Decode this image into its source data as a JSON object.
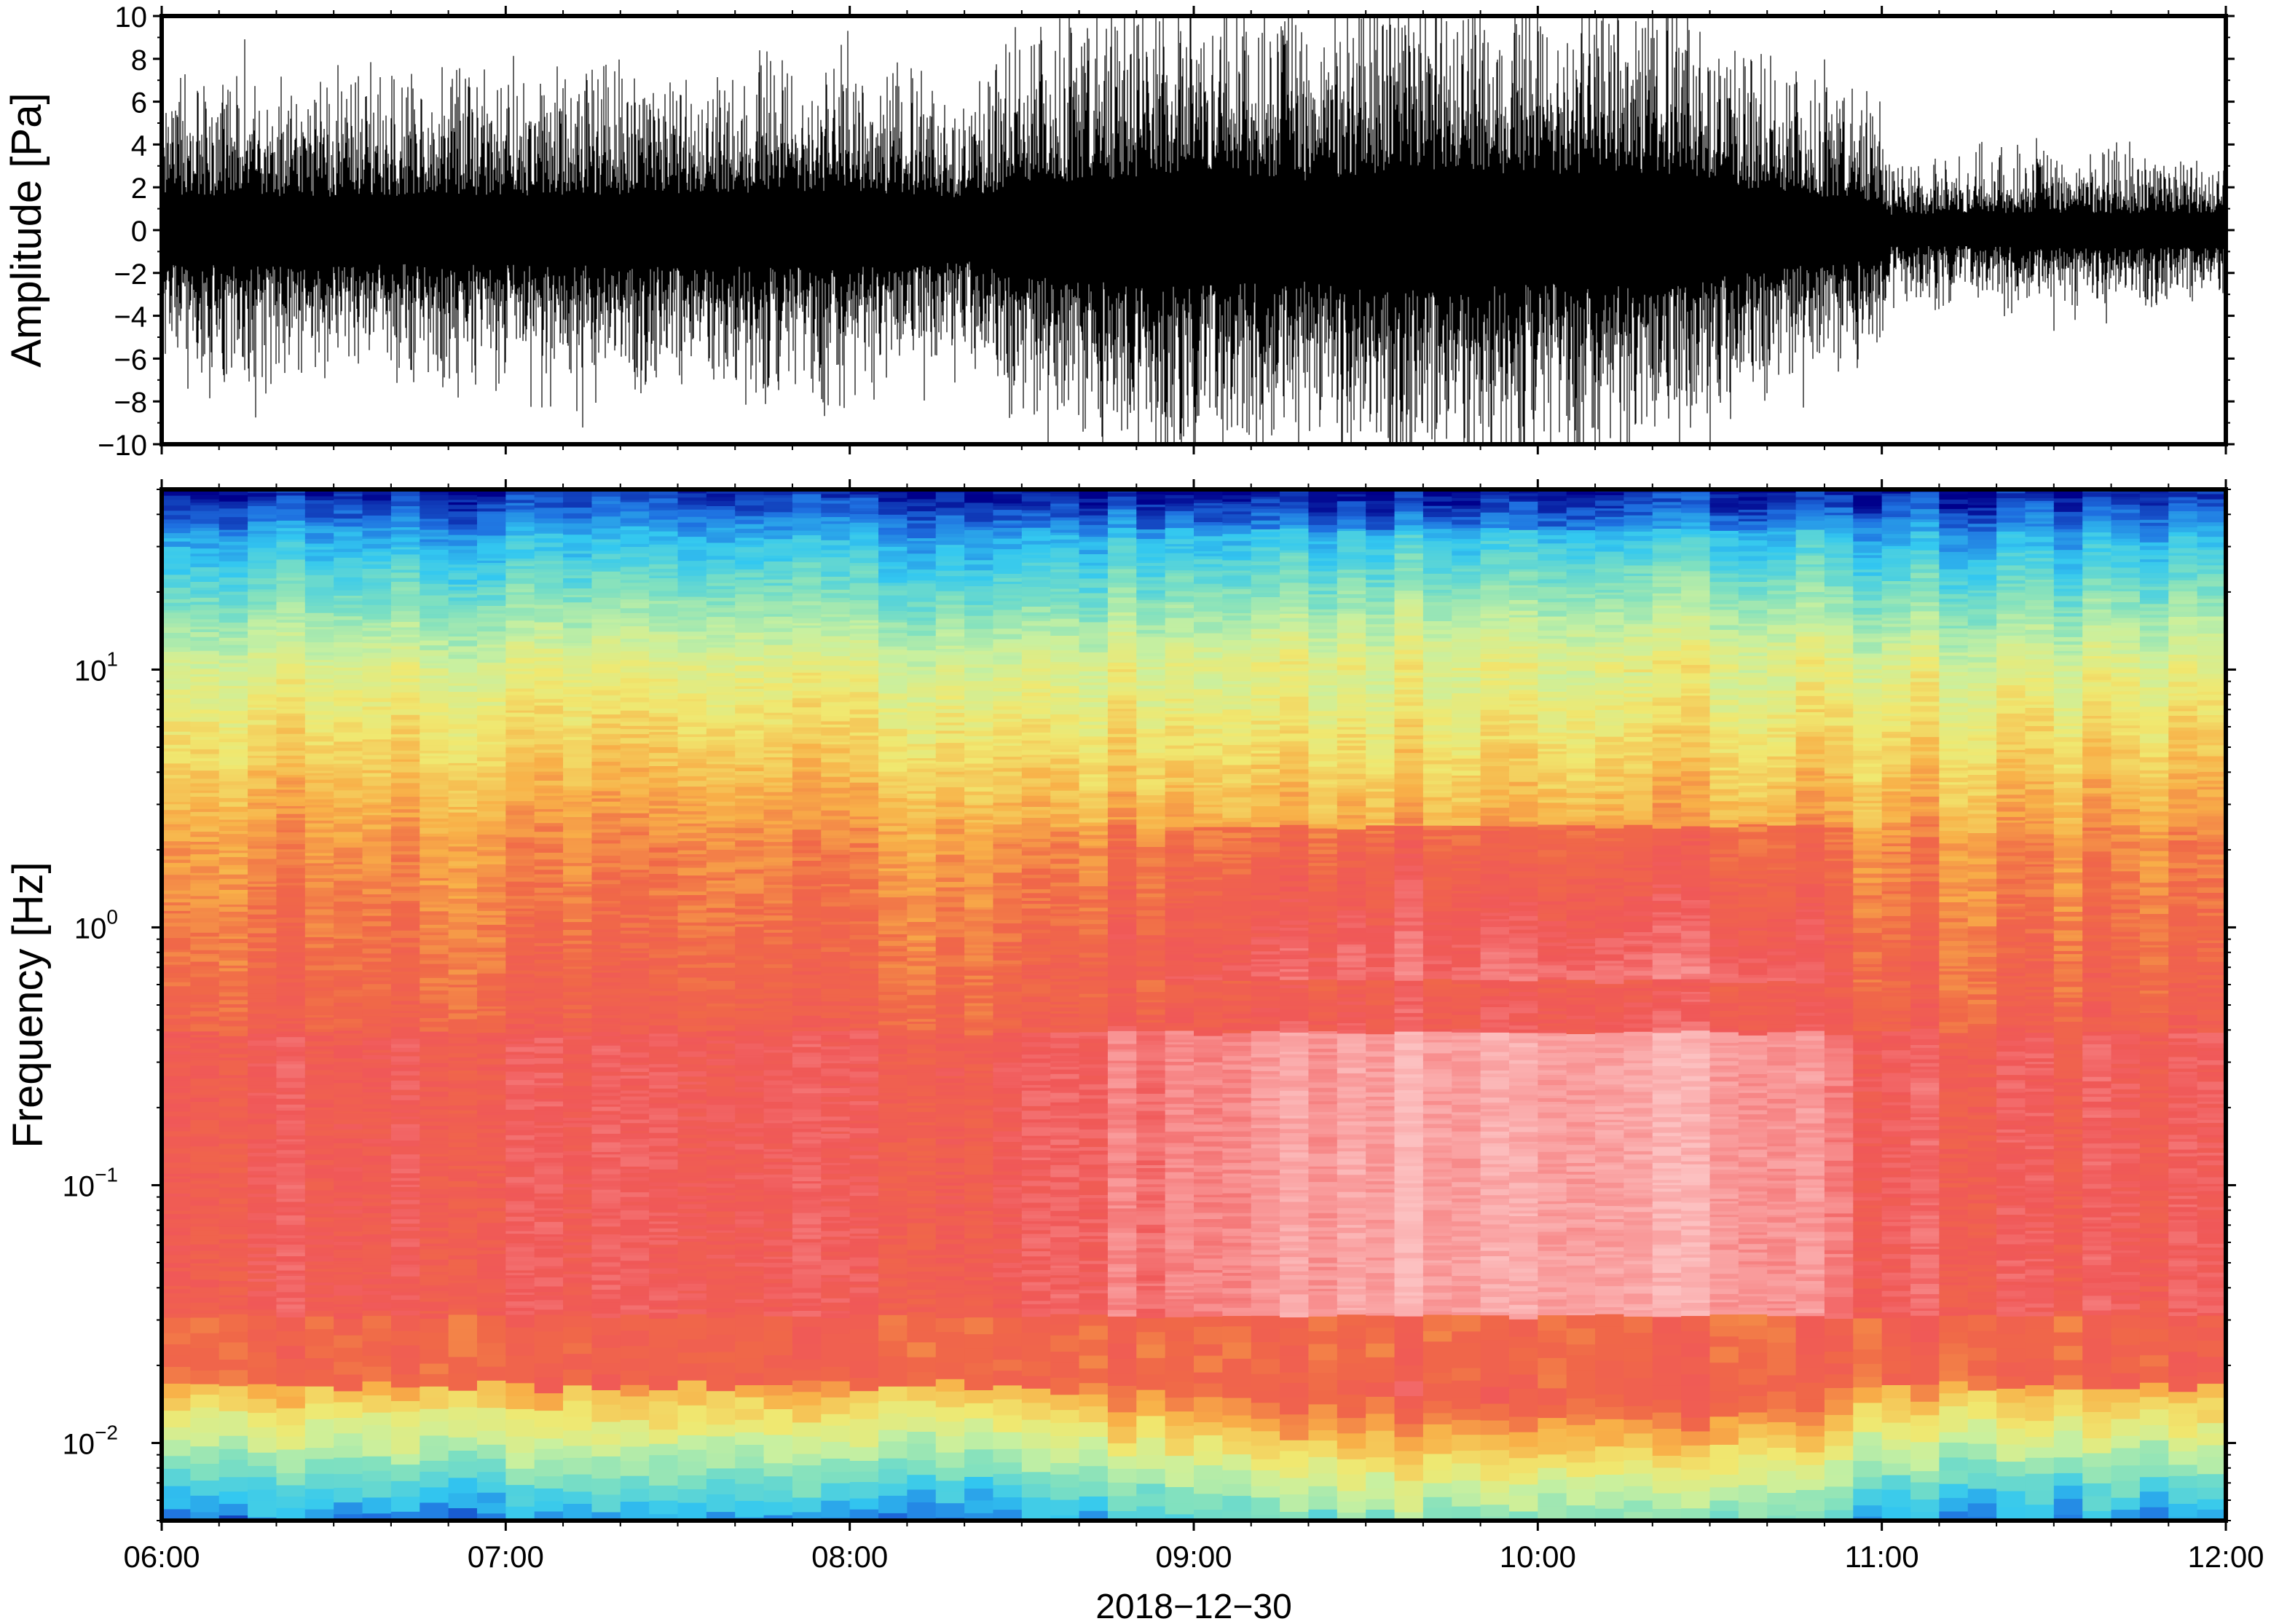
{
  "chart_data": [
    {
      "type": "line",
      "title": "",
      "xlabel": "",
      "ylabel": "Amplitude [Pa]",
      "xlim": [
        "06:00",
        "12:00"
      ],
      "ylim": [
        -10,
        10
      ],
      "yticks": [
        -10,
        -8,
        -6,
        -4,
        -2,
        0,
        2,
        4,
        6,
        8,
        10
      ],
      "ytick_labels": [
        "−10",
        "−8",
        "−6",
        "−4",
        "−2",
        "0",
        "2",
        "4",
        "6",
        "8",
        "10"
      ],
      "grid": false,
      "series": [
        {
          "color": "#000000",
          "envelope": {
            "time": [
              "06:00",
              "06:30",
              "07:00",
              "07:30",
              "08:00",
              "08:20",
              "08:30",
              "09:00",
              "09:10",
              "09:20",
              "09:30",
              "09:45",
              "10:00",
              "10:15",
              "10:30",
              "10:40",
              "11:00",
              "11:01",
              "11:30",
              "12:00"
            ],
            "typical_amplitude": [
              4.5,
              4.5,
              4.6,
              4.8,
              5.0,
              4.0,
              6.0,
              7.5,
              7.0,
              6.5,
              7.5,
              8.0,
              7.0,
              7.5,
              6.5,
              5.0,
              3.8,
              2.0,
              2.3,
              2.2
            ],
            "peak_amplitude": [
              7,
              7,
              7.5,
              8,
              8,
              6.5,
              9,
              10,
              10,
              9.5,
              10,
              10,
              10,
              10,
              9.5,
              7.5,
              6,
              3.5,
              4.5,
              3.5
            ]
          }
        }
      ]
    },
    {
      "type": "heatmap",
      "title": "",
      "xlabel": "2018−12−30",
      "ylabel": "Frequency [Hz]",
      "xlim": [
        "06:00",
        "12:00"
      ],
      "xticks": [
        "06:00",
        "07:00",
        "08:00",
        "09:00",
        "10:00",
        "11:00",
        "12:00"
      ],
      "ylim": [
        0.005,
        50
      ],
      "yscale": "log",
      "yticks": [
        {
          "base": "10",
          "exp": "−2",
          "value": 0.01
        },
        {
          "base": "10",
          "exp": "−1",
          "value": 0.1
        },
        {
          "base": "10",
          "exp": "0",
          "value": 1
        },
        {
          "base": "10",
          "exp": "1",
          "value": 10
        }
      ],
      "colormap": [
        "#00008b",
        "#1e6fe0",
        "#33c8f0",
        "#7fe0c0",
        "#c8f0a0",
        "#f0e870",
        "#f8b048",
        "#f06848",
        "#f05858",
        "#f89090",
        "#fcc0c0"
      ],
      "time_segments": 72,
      "time_edges": [
        "06:00",
        "08:20",
        "09:00",
        "09:30",
        "10:40",
        "11:00",
        "12:00"
      ],
      "relative_power_envelope": [
        0.45,
        0.45,
        0.7,
        0.85,
        0.8,
        0.5,
        0.45
      ]
    }
  ]
}
